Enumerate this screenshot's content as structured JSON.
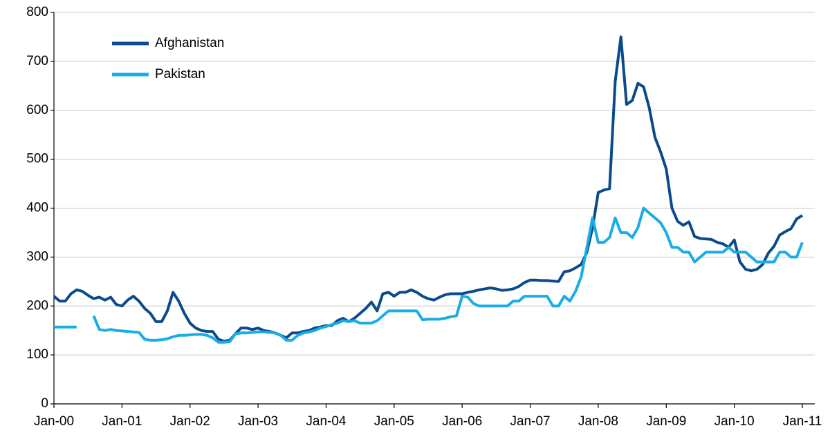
{
  "chart_data": {
    "type": "line",
    "categories": [
      "Jan-00",
      null,
      null,
      null,
      null,
      null,
      null,
      null,
      null,
      null,
      null,
      null,
      "Jan-01",
      null,
      null,
      null,
      null,
      null,
      null,
      null,
      null,
      null,
      null,
      null,
      "Jan-02",
      null,
      null,
      null,
      null,
      null,
      null,
      null,
      null,
      null,
      null,
      null,
      "Jan-03",
      null,
      null,
      null,
      null,
      null,
      null,
      null,
      null,
      null,
      null,
      null,
      "Jan-04",
      null,
      null,
      null,
      null,
      null,
      null,
      null,
      null,
      null,
      null,
      null,
      "Jan-05",
      null,
      null,
      null,
      null,
      null,
      null,
      null,
      null,
      null,
      null,
      null,
      "Jan-06",
      null,
      null,
      null,
      null,
      null,
      null,
      null,
      null,
      null,
      null,
      null,
      "Jan-07",
      null,
      null,
      null,
      null,
      null,
      null,
      null,
      null,
      null,
      null,
      null,
      "Jan-08",
      null,
      null,
      null,
      null,
      null,
      null,
      null,
      null,
      null,
      null,
      null,
      "Jan-09",
      null,
      null,
      null,
      null,
      null,
      null,
      null,
      null,
      null,
      null,
      null,
      "Jan-10",
      null,
      null,
      null,
      null,
      null,
      null,
      null,
      null,
      null,
      null,
      null,
      "Jan-11"
    ],
    "series": [
      {
        "name": "Afghanistan",
        "color": "#0b4a8b",
        "values": [
          220,
          210,
          210,
          225,
          233,
          230,
          222,
          215,
          218,
          212,
          218,
          203,
          200,
          212,
          220,
          210,
          195,
          185,
          168,
          168,
          190,
          228,
          210,
          185,
          165,
          155,
          150,
          148,
          148,
          132,
          128,
          130,
          143,
          155,
          155,
          152,
          155,
          150,
          148,
          145,
          140,
          135,
          145,
          145,
          148,
          150,
          155,
          157,
          160,
          160,
          170,
          175,
          168,
          175,
          185,
          195,
          208,
          190,
          225,
          228,
          220,
          228,
          228,
          233,
          228,
          220,
          215,
          212,
          218,
          223,
          225,
          225,
          225,
          228,
          230,
          233,
          235,
          237,
          235,
          232,
          233,
          235,
          240,
          248,
          253,
          253,
          252,
          252,
          251,
          250,
          270,
          272,
          278,
          285,
          310,
          360,
          432,
          437,
          440,
          660,
          750,
          612,
          620,
          655,
          648,
          605,
          545,
          515,
          480,
          400,
          373,
          365,
          372,
          342,
          338,
          337,
          336,
          330,
          327,
          320,
          335,
          290,
          275,
          272,
          275,
          285,
          308,
          322,
          345,
          352,
          358,
          378,
          385
        ]
      },
      {
        "name": "Pakistan",
        "color": "#19ade6",
        "values": [
          157,
          157,
          157,
          157,
          157,
          null,
          null,
          180,
          152,
          150,
          152,
          150,
          149,
          148,
          147,
          146,
          132,
          130,
          130,
          131,
          133,
          137,
          140,
          140,
          141,
          142,
          142,
          140,
          135,
          126,
          126,
          127,
          143,
          145,
          145,
          146,
          147,
          147,
          146,
          145,
          140,
          130,
          130,
          140,
          145,
          147,
          150,
          155,
          158,
          162,
          165,
          170,
          168,
          170,
          165,
          165,
          165,
          170,
          180,
          190,
          190,
          190,
          190,
          190,
          190,
          172,
          173,
          173,
          173,
          175,
          178,
          180,
          220,
          218,
          205,
          200,
          200,
          200,
          200,
          200,
          200,
          210,
          210,
          220,
          220,
          220,
          220,
          220,
          200,
          200,
          220,
          210,
          230,
          260,
          320,
          380,
          330,
          330,
          340,
          380,
          350,
          350,
          340,
          360,
          400,
          390,
          380,
          370,
          350,
          320,
          320,
          310,
          310,
          290,
          300,
          310,
          310,
          310,
          310,
          320,
          310,
          310,
          310,
          300,
          290,
          290,
          290,
          290,
          310,
          310,
          300,
          300,
          330
        ]
      }
    ],
    "ylim": [
      0,
      800
    ],
    "yticks": [
      0,
      100,
      200,
      300,
      400,
      500,
      600,
      700,
      800
    ],
    "grid": true,
    "legend": "upper left"
  }
}
